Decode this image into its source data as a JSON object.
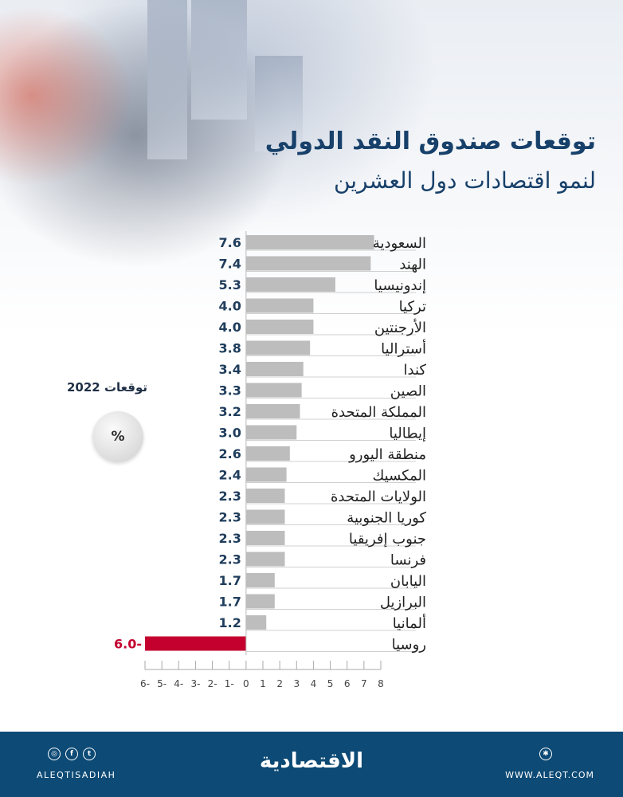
{
  "header": {
    "title": "توقعات صندوق النقد الدولي",
    "subtitle": "لنمو اقتصادات دول العشرين"
  },
  "side": {
    "label": "توقعات 2022",
    "unit": "%"
  },
  "chart_data": {
    "type": "bar",
    "orientation": "horizontal",
    "categories": [
      "السعودية",
      "الهند",
      "إندونيسيا",
      "تركيا",
      "الأرجنتين",
      "أستراليا",
      "كندا",
      "الصين",
      "المملكة المتحدة",
      "إيطاليا",
      "منطقة  اليورو",
      "المكسيك",
      "الولايات المتحدة",
      "كوريا الجنوبية",
      "جنوب إفريقيا",
      "فرنسا",
      "اليابان",
      "البرازيل",
      "ألمانيا",
      "روسيا"
    ],
    "values": [
      7.6,
      7.4,
      5.3,
      4.0,
      4.0,
      3.8,
      3.4,
      3.3,
      3.2,
      3.0,
      2.6,
      2.4,
      2.3,
      2.3,
      2.3,
      2.3,
      1.7,
      1.7,
      1.2,
      -6.0
    ],
    "value_labels": [
      "7.6",
      "7.4",
      "5.3",
      "4.0",
      "4.0",
      "3.8",
      "3.4",
      "3.3",
      "3.2",
      "3.0",
      "2.6",
      "2.4",
      "2.3",
      "2.3",
      "2.3",
      "2.3",
      "1.7",
      "1.7",
      "1.2",
      "6.0-"
    ],
    "xlim": [
      -6,
      8
    ],
    "ticks": [
      "6-",
      "5-",
      "4-",
      "3-",
      "2-",
      "1-",
      "0",
      "1",
      "2",
      "3",
      "4",
      "5",
      "6",
      "7",
      "8"
    ],
    "colors": {
      "positive": "#bdbdbd",
      "negative": "#c4002f",
      "label": "#1f3d5c",
      "negative_label": "#c4002f"
    }
  },
  "footer": {
    "handle": "ALEQTISADIAH",
    "logo": "الاقتصادية",
    "website": "WWW.ALEQT.COM",
    "social_icons": [
      "instagram-icon",
      "facebook-icon",
      "twitter-icon"
    ],
    "web_icon": "globe-icon",
    "color": "#0d4a75"
  }
}
